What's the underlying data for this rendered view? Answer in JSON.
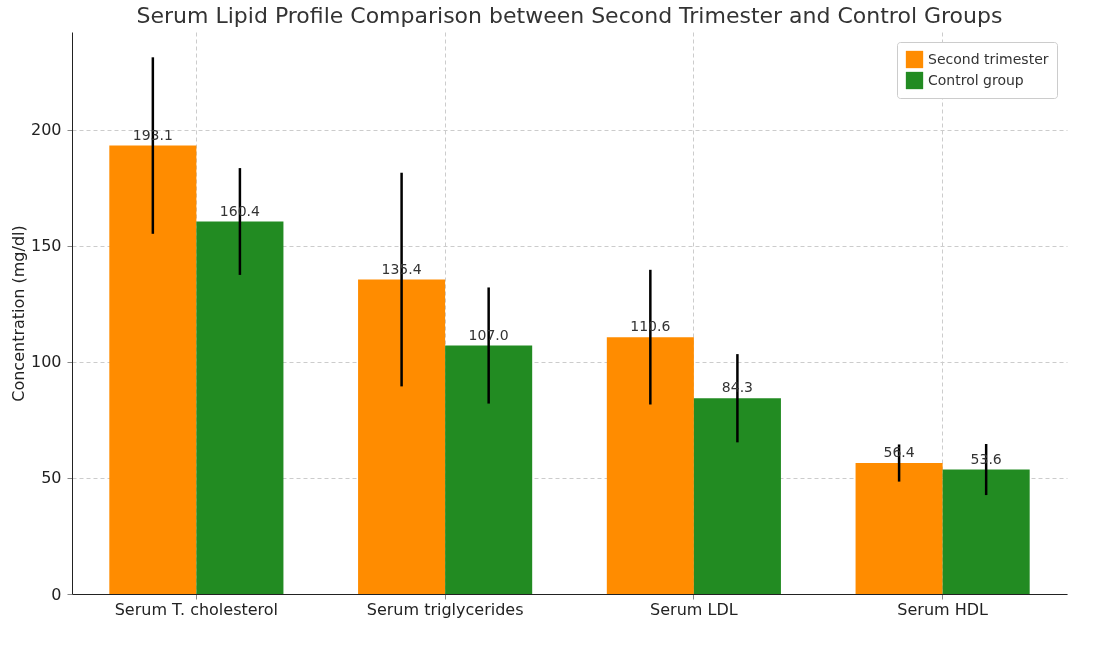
{
  "chart_data": {
    "type": "bar",
    "title": "Serum Lipid Profile Comparison between Second Trimester and Control Groups",
    "ylabel": "Concentration (mg/dl)",
    "categories": [
      "Serum T. cholesterol",
      "Serum triglycerides",
      "Serum LDL",
      "Serum HDL"
    ],
    "series": [
      {
        "name": "Second trimester",
        "color": "#ff8c00",
        "values": [
          193.1,
          135.4,
          110.6,
          56.4
        ],
        "value_labels": [
          "193.1",
          "135.4",
          "110.6",
          "56.4"
        ],
        "errors": [
          38,
          46,
          29,
          8
        ]
      },
      {
        "name": "Control group",
        "color": "#228b22",
        "values": [
          160.4,
          107.0,
          84.3,
          53.6
        ],
        "value_labels": [
          "160.4",
          "107.0",
          "84.3",
          "53.6"
        ],
        "errors": [
          23,
          25,
          19,
          11
        ]
      }
    ],
    "ylim": [
      0,
      242
    ],
    "yticks": [
      0,
      50,
      100,
      150,
      200
    ],
    "grid": true,
    "legend": "top right"
  }
}
